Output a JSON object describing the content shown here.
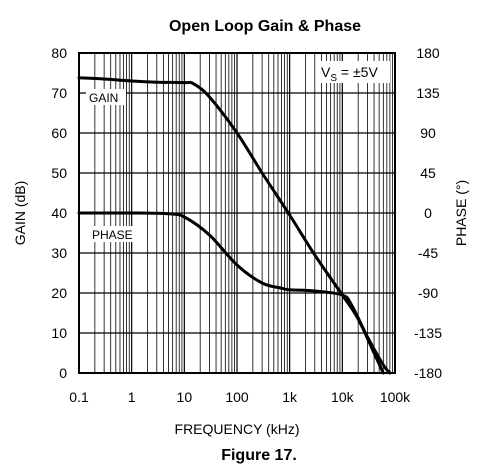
{
  "chart_data": {
    "type": "line",
    "title": "Open Loop Gain & Phase",
    "caption": "Figure 17.",
    "xlabel": "FREQUENCY (kHz)",
    "ylabel_left": "GAIN (dB)",
    "ylabel_right": "PHASE (°)",
    "x_scale": "log",
    "xlim": [
      0.1,
      100000
    ],
    "x_ticks": [
      0.1,
      1,
      10,
      100,
      1000,
      10000,
      100000
    ],
    "x_tick_labels": [
      "0.1",
      "1",
      "10",
      "100",
      "1k",
      "10k",
      "100k"
    ],
    "ylim_left": [
      0,
      80
    ],
    "y_ticks_left": [
      0,
      10,
      20,
      30,
      40,
      50,
      60,
      70,
      80
    ],
    "y_tick_labels_left": [
      "0",
      "10",
      "20",
      "30",
      "40",
      "50",
      "60",
      "70",
      "80"
    ],
    "ylim_right": [
      -180,
      180
    ],
    "y_ticks_right": [
      -180,
      -135,
      -90,
      -45,
      0,
      45,
      90,
      135,
      180
    ],
    "y_tick_labels_right": [
      "-180",
      "-135",
      "-90",
      "-45",
      "0",
      "45",
      "90",
      "135",
      "180"
    ],
    "grid": true,
    "annotation": {
      "prefix": "V",
      "subscript": "S",
      "suffix": " = ±5V"
    },
    "series": [
      {
        "name": "GAIN",
        "axis": "left",
        "x": [
          0.1,
          0.3,
          1,
          3,
          10,
          15,
          30,
          100,
          300,
          1000,
          3000,
          10000,
          20000,
          40000,
          60000
        ],
        "y": [
          73.8,
          73.5,
          73,
          72.7,
          72.6,
          72.3,
          69,
          60,
          50,
          39.5,
          29.5,
          19.5,
          13.5,
          5,
          0
        ]
      },
      {
        "name": "PHASE",
        "axis": "left",
        "x": [
          0.1,
          1,
          5,
          10,
          30,
          100,
          300,
          700,
          1000,
          3000,
          10000,
          15000,
          30000,
          60000,
          80000
        ],
        "y": [
          40,
          40,
          39.8,
          39,
          34.5,
          27,
          22.5,
          21.2,
          20.8,
          20.5,
          19.5,
          17,
          9,
          2,
          0
        ]
      }
    ]
  }
}
